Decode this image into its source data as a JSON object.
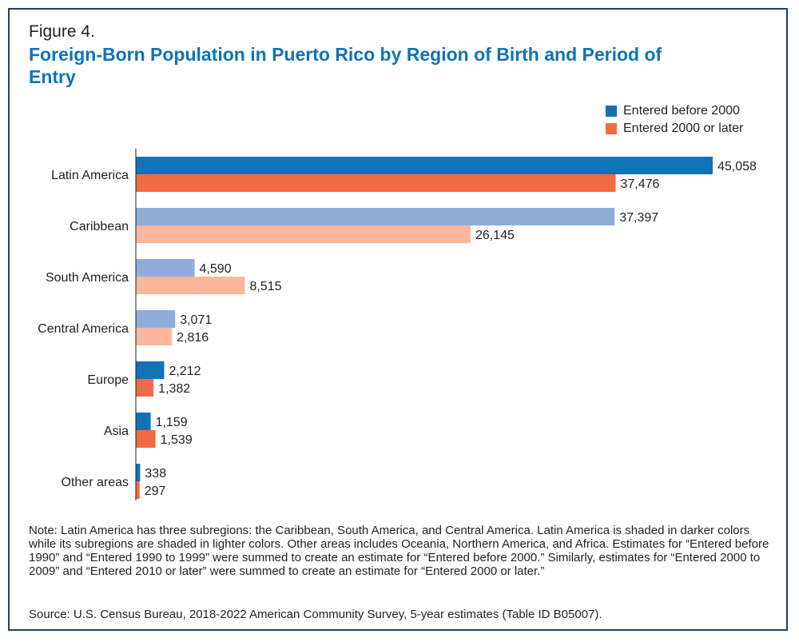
{
  "figure_label": "Figure 4.",
  "title": "Foreign-Born Population in Puerto Rico by Region of Birth and Period of Entry",
  "note": "Note: Latin America has three subregions: the Caribbean, South America, and Central America. Latin America is shaded in darker colors while its subregions are shaded in lighter colors. Other areas includes Oceania, Northern America, and Africa. Estimates for “Entered before 1990” and “Entered 1990 to 1999” were summed to create an estimate for “Entered before 2000.” Similarly, estimates for “Entered 2000 to 2009” and “Entered 2010 or later” were summed to create an estimate for “Entered 2000 or later.”",
  "source": "Source: U.S. Census Bureau, 2018-2022 American Community Survey, 5-year estimates (Table ID B05007).",
  "colors": {
    "before_dark": "#0f73b6",
    "later_dark": "#f26b43",
    "before_light": "#8eaddb",
    "later_light": "#fbb69c",
    "frame": "#1f3f6e",
    "title": "#0f73b6"
  },
  "chart_data": {
    "type": "bar",
    "orientation": "horizontal",
    "categories": [
      "Latin America",
      "Caribbean",
      "South America",
      "Central America",
      "Europe",
      "Asia",
      "Other areas"
    ],
    "shading": [
      "dark",
      "light",
      "light",
      "light",
      "dark",
      "dark",
      "dark"
    ],
    "series": [
      {
        "name": "Entered before 2000",
        "values": [
          45058,
          37397,
          4590,
          3071,
          2212,
          1159,
          338
        ]
      },
      {
        "name": "Entered 2000 or later",
        "values": [
          37476,
          26145,
          8515,
          2816,
          1382,
          1539,
          297
        ]
      }
    ],
    "xlim": [
      0,
      45058
    ],
    "grid": false,
    "legend_position": "top-right",
    "data_labels": true
  }
}
